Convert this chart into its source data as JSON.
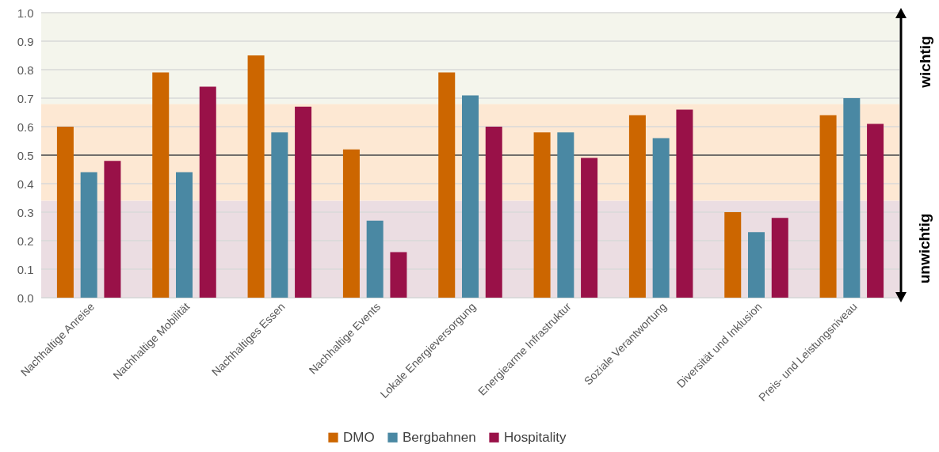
{
  "chart_data": {
    "type": "bar",
    "categories": [
      "Nachhaltige Anreise",
      "Nachhaltige Mobilität",
      "Nachhaltiges Essen",
      "Nachhaltige Events",
      "Lokale Energieversorgung",
      "Energiearme Infrastruktur",
      "Soziale Verantwortung",
      "Diversität und Inklusion",
      "Preis- und Leistungsniveau"
    ],
    "series": [
      {
        "name": "DMO",
        "color": "#cc6600",
        "values": [
          0.6,
          0.79,
          0.85,
          0.52,
          0.79,
          0.58,
          0.64,
          0.3,
          0.64
        ]
      },
      {
        "name": "Bergbahnen",
        "color": "#4a88a3",
        "values": [
          0.44,
          0.44,
          0.58,
          0.27,
          0.71,
          0.58,
          0.56,
          0.23,
          0.7
        ]
      },
      {
        "name": "Hospitality",
        "color": "#991148",
        "values": [
          0.48,
          0.74,
          0.67,
          0.16,
          0.6,
          0.49,
          0.66,
          0.28,
          0.61
        ]
      }
    ],
    "ylim": [
      0,
      1
    ],
    "yticks": [
      {
        "value": 0,
        "label": "0.0"
      },
      0.1,
      0.2,
      0.3,
      0.4,
      0.5,
      0.6,
      0.7,
      0.8,
      0.9,
      {
        "value": 1,
        "label": "1.0"
      }
    ],
    "grid": "y",
    "legend": "bottom",
    "bands": [
      {
        "axis": "y",
        "from": 0,
        "to": 0.34,
        "color": "#ebdde2"
      },
      {
        "axis": "y",
        "from": 0.34,
        "to": 0.68,
        "color": "#fde8d3"
      },
      {
        "axis": "y",
        "from": 0.68,
        "to": 1,
        "color": "#f4f5ec"
      }
    ],
    "ref_lines": [
      {
        "axis": "y",
        "value": 0.5,
        "color": "#000000"
      }
    ],
    "annotations": [
      "wichtig",
      "unwichtig"
    ]
  }
}
